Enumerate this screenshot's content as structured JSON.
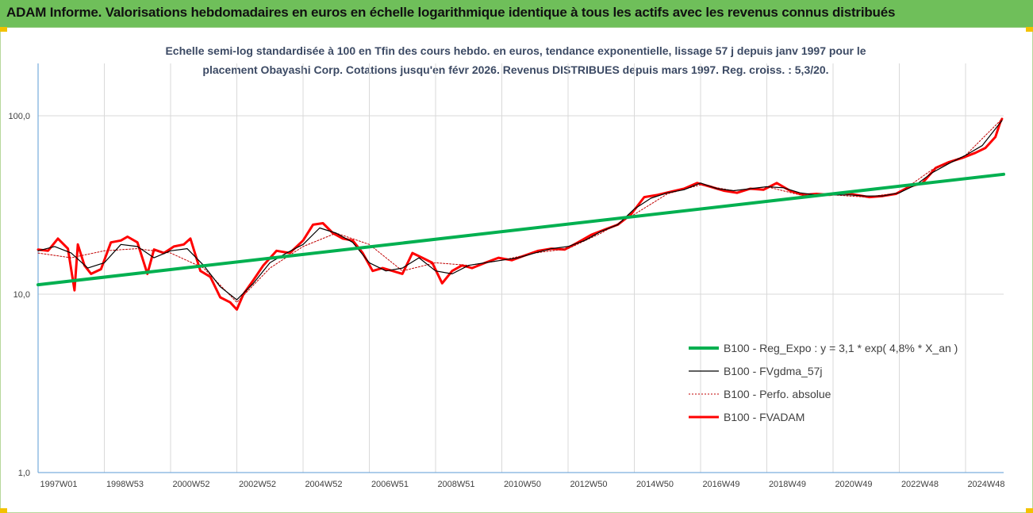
{
  "header": {
    "title": "ADAM Informe. Valorisations hebdomadaires en euros en échelle logarithmique identique à tous les actifs avec les revenus connus distribués"
  },
  "chart_data": {
    "type": "line",
    "title_lines": [
      "Echelle semi-log standardisée à 100 en Tfin des cours hebdo. en euros, tendance exponentielle, lissage 57 j depuis janv 1997 pour le",
      "placement Obayashi Corp. Cotations jusqu'en févr 2026.  Revenus DISTRIBUES depuis mars 1997. Reg. croiss. : 5,3/20."
    ],
    "y_scale": "log",
    "ylim": [
      1,
      100
    ],
    "y_ticks": [
      {
        "value": 1,
        "label": "1,0"
      },
      {
        "value": 10,
        "label": "10,0"
      },
      {
        "value": 100,
        "label": "100,0"
      }
    ],
    "xlim": [
      1997.0,
      2026.15
    ],
    "x_ticks": [
      {
        "pos": 1997.0,
        "label": "1997W01"
      },
      {
        "pos": 1999.0,
        "label": "1998W53"
      },
      {
        "pos": 2001.0,
        "label": "2000W52"
      },
      {
        "pos": 2003.0,
        "label": "2002W52"
      },
      {
        "pos": 2005.0,
        "label": "2004W52"
      },
      {
        "pos": 2007.0,
        "label": "2006W51"
      },
      {
        "pos": 2009.0,
        "label": "2008W51"
      },
      {
        "pos": 2011.0,
        "label": "2010W50"
      },
      {
        "pos": 2013.0,
        "label": "2012W50"
      },
      {
        "pos": 2015.0,
        "label": "2014W50"
      },
      {
        "pos": 2017.0,
        "label": "2016W49"
      },
      {
        "pos": 2019.0,
        "label": "2018W49"
      },
      {
        "pos": 2021.0,
        "label": "2020W49"
      },
      {
        "pos": 2023.0,
        "label": "2022W48"
      },
      {
        "pos": 2025.0,
        "label": "2024W48"
      }
    ],
    "grid": "vertical and horizontal major",
    "legend_position": "bottom-right",
    "colors": {
      "reg": "#00b050",
      "smooth": "#000000",
      "perfo": "#c00000",
      "fvadam": "#ff0000",
      "axis": "#5b9bd5",
      "grid": "#d9d9d9"
    },
    "series": [
      {
        "key": "fvadam",
        "name": "B100 - FVADAM",
        "x": [
          1997.0,
          1997.3,
          1997.6,
          1997.9,
          1998.1,
          1998.2,
          1998.4,
          1998.6,
          1998.9,
          1999.2,
          1999.5,
          1999.7,
          2000.0,
          2000.3,
          2000.5,
          2000.8,
          2001.1,
          2001.4,
          2001.6,
          2001.9,
          2002.2,
          2002.5,
          2002.8,
          2003.0,
          2003.2,
          2003.5,
          2003.8,
          2004.2,
          2004.6,
          2005.0,
          2005.3,
          2005.6,
          2005.9,
          2006.2,
          2006.5,
          2006.8,
          2007.1,
          2007.4,
          2007.7,
          2008.0,
          2008.3,
          2008.6,
          2008.9,
          2009.2,
          2009.5,
          2009.8,
          2010.1,
          2010.5,
          2010.9,
          2011.3,
          2011.7,
          2012.1,
          2012.5,
          2012.9,
          2013.3,
          2013.7,
          2014.1,
          2014.5,
          2014.9,
          2015.3,
          2015.7,
          2016.1,
          2016.5,
          2016.9,
          2017.3,
          2017.7,
          2018.1,
          2018.5,
          2018.9,
          2019.3,
          2019.7,
          2020.1,
          2020.5,
          2020.9,
          2021.3,
          2021.7,
          2022.1,
          2022.5,
          2022.9,
          2023.3,
          2023.7,
          2024.1,
          2024.5,
          2024.9,
          2025.3,
          2025.6,
          2025.9,
          2026.05,
          2026.1
        ],
        "y": [
          17.8,
          17.5,
          20.5,
          18.0,
          10.5,
          19.0,
          14.5,
          13.0,
          13.8,
          19.5,
          20.0,
          21.0,
          19.5,
          13.0,
          17.8,
          17.0,
          18.5,
          19.0,
          20.5,
          13.5,
          12.5,
          9.6,
          9.0,
          8.2,
          10.0,
          12.0,
          14.5,
          17.5,
          17.0,
          20.0,
          24.5,
          25.0,
          22.0,
          20.5,
          20.0,
          17.0,
          13.5,
          14.0,
          13.5,
          13.0,
          17.0,
          16.0,
          15.0,
          11.5,
          13.5,
          14.5,
          14.0,
          15.0,
          16.0,
          15.5,
          16.5,
          17.5,
          18.0,
          17.8,
          19.5,
          21.5,
          23.0,
          24.5,
          28.0,
          35.0,
          36.0,
          37.5,
          39.0,
          42.0,
          40.0,
          38.0,
          37.0,
          39.0,
          38.5,
          42.0,
          38.0,
          36.0,
          36.5,
          36.0,
          37.0,
          36.0,
          35.0,
          35.5,
          36.5,
          40.0,
          42.0,
          51.0,
          55.0,
          58.0,
          62.0,
          66.0,
          76.0,
          92.0,
          96.0
        ]
      },
      {
        "key": "perfo",
        "name": "B100 - Perfo. absolue",
        "x": [
          1997.0,
          1998.0,
          1999.0,
          2000.0,
          2001.0,
          2002.0,
          2003.0,
          2004.0,
          2005.0,
          2006.0,
          2007.0,
          2008.0,
          2009.0,
          2010.0,
          2011.0,
          2012.0,
          2013.0,
          2014.0,
          2015.0,
          2016.0,
          2017.0,
          2018.0,
          2019.0,
          2020.0,
          2021.0,
          2022.0,
          2023.0,
          2024.0,
          2025.0,
          2026.1
        ],
        "y": [
          17.0,
          16.0,
          17.5,
          18.0,
          17.0,
          14.0,
          9.0,
          14.0,
          18.5,
          22.0,
          19.0,
          13.5,
          15.0,
          14.5,
          15.5,
          17.0,
          18.0,
          22.0,
          28.0,
          36.5,
          41.0,
          38.0,
          40.0,
          36.0,
          36.0,
          35.0,
          37.0,
          50.0,
          60.0,
          96.0
        ]
      },
      {
        "key": "smooth",
        "name": "B100 - FVgdma_57j",
        "x": [
          1997.0,
          1997.5,
          1998.0,
          1998.5,
          1999.0,
          1999.5,
          2000.0,
          2000.5,
          2001.0,
          2001.5,
          2002.0,
          2002.5,
          2003.0,
          2003.5,
          2004.0,
          2004.5,
          2005.0,
          2005.5,
          2006.0,
          2006.5,
          2007.0,
          2007.5,
          2008.0,
          2008.5,
          2009.0,
          2009.5,
          2010.0,
          2010.5,
          2011.0,
          2011.5,
          2012.0,
          2012.5,
          2013.0,
          2013.5,
          2014.0,
          2014.5,
          2015.0,
          2015.5,
          2016.0,
          2016.5,
          2017.0,
          2017.5,
          2018.0,
          2018.5,
          2019.0,
          2019.5,
          2020.0,
          2020.5,
          2021.0,
          2021.5,
          2022.0,
          2022.5,
          2023.0,
          2023.5,
          2024.0,
          2024.5,
          2025.0,
          2025.5,
          2026.1
        ],
        "y": [
          17.5,
          18.5,
          17.0,
          14.0,
          15.0,
          19.0,
          18.5,
          16.0,
          17.5,
          18.0,
          14.5,
          11.0,
          9.3,
          11.5,
          15.0,
          17.0,
          19.0,
          23.5,
          22.0,
          19.5,
          15.0,
          13.5,
          14.0,
          16.0,
          13.5,
          13.0,
          14.5,
          15.0,
          15.5,
          16.0,
          17.0,
          18.0,
          18.5,
          20.0,
          22.5,
          24.5,
          30.0,
          34.5,
          37.0,
          38.5,
          42.0,
          39.0,
          38.0,
          39.0,
          40.0,
          39.5,
          37.0,
          36.0,
          36.0,
          36.0,
          35.5,
          35.5,
          37.0,
          41.0,
          48.0,
          54.0,
          60.0,
          68.0,
          94.0
        ]
      },
      {
        "key": "reg",
        "name": "B100 - Reg_Expo : y = 3,1 * exp( 4,8% *  X_an )",
        "x": [
          1997.0,
          2026.15
        ],
        "y": [
          11.3,
          47.0
        ]
      }
    ],
    "legend_order": [
      "reg",
      "smooth",
      "perfo",
      "fvadam"
    ]
  }
}
